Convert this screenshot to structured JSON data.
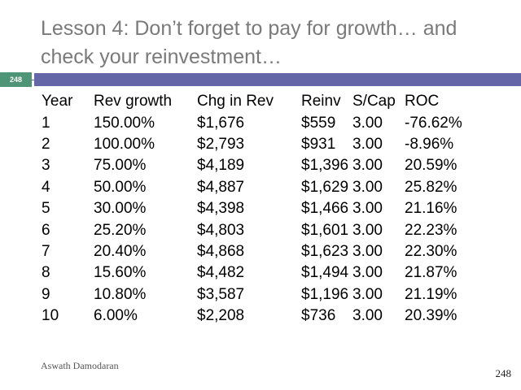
{
  "slide": {
    "title": "Lesson 4: Don’t forget to pay for growth… and check your reinvestment…",
    "tag_number": "248",
    "colors": {
      "title_text": "#7a7a7a",
      "accent_bar": "#6466a8",
      "tag_background": "#4e9476"
    }
  },
  "table": {
    "headers": {
      "year": "Year",
      "rev_growth": "Rev growth",
      "chg_in_rev": "Chg in Rev",
      "reinv": "Reinv",
      "s_cap": "S/Cap",
      "roc": "ROC"
    },
    "rows": [
      {
        "year": "1",
        "rev_growth": "150.00%",
        "chg_in_rev": "$1,676",
        "reinv": "$559",
        "s_cap": "3.00",
        "roc": "-76.62%"
      },
      {
        "year": "2",
        "rev_growth": "100.00%",
        "chg_in_rev": "$2,793",
        "reinv": "$931",
        "s_cap": "3.00",
        "roc": "-8.96%"
      },
      {
        "year": "3",
        "rev_growth": "75.00%",
        "chg_in_rev": "$4,189",
        "reinv": "$1,396",
        "s_cap": "3.00",
        "roc": "20.59%"
      },
      {
        "year": "4",
        "rev_growth": "50.00%",
        "chg_in_rev": "$4,887",
        "reinv": "$1,629",
        "s_cap": "3.00",
        "roc": "25.82%"
      },
      {
        "year": "5",
        "rev_growth": "30.00%",
        "chg_in_rev": "$4,398",
        "reinv": "$1,466",
        "s_cap": "3.00",
        "roc": "21.16%"
      },
      {
        "year": "6",
        "rev_growth": "25.20%",
        "chg_in_rev": "$4,803",
        "reinv": "$1,601",
        "s_cap": "3.00",
        "roc": "22.23%"
      },
      {
        "year": "7",
        "rev_growth": "20.40%",
        "chg_in_rev": "$4,868",
        "reinv": "$1,623",
        "s_cap": "3.00",
        "roc": "22.30%"
      },
      {
        "year": "8",
        "rev_growth": "15.60%",
        "chg_in_rev": "$4,482",
        "reinv": "$1,494",
        "s_cap": "3.00",
        "roc": "21.87%"
      },
      {
        "year": "9",
        "rev_growth": "10.80%",
        "chg_in_rev": "$3,587",
        "reinv": "$1,196",
        "s_cap": "3.00",
        "roc": "21.19%"
      },
      {
        "year": "10",
        "rev_growth": "6.00%",
        "chg_in_rev": "$2,208",
        "reinv": "$736",
        "s_cap": "3.00",
        "roc": "20.39%"
      }
    ]
  },
  "footer": {
    "author": "Aswath Damodaran",
    "page_number": "248"
  }
}
